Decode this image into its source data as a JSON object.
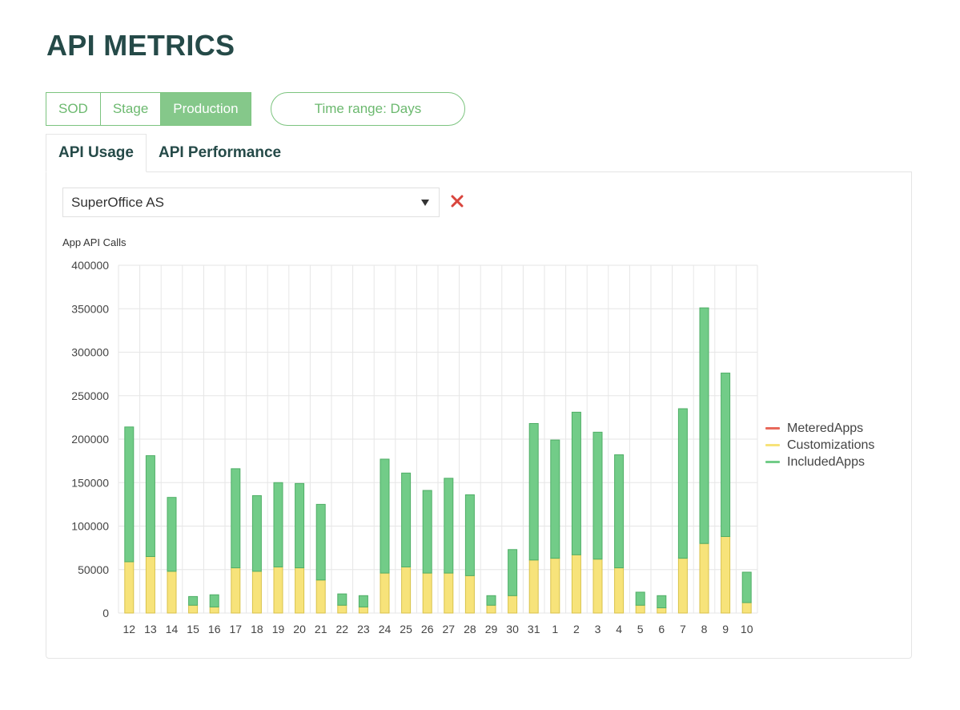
{
  "page": {
    "title": "API METRICS"
  },
  "environments": [
    {
      "label": "SOD",
      "active": false
    },
    {
      "label": "Stage",
      "active": false
    },
    {
      "label": "Production",
      "active": true
    }
  ],
  "time_range": {
    "label": "Time range: Days"
  },
  "tabs": [
    {
      "label": "API Usage",
      "active": true
    },
    {
      "label": "API Performance",
      "active": false
    }
  ],
  "filter": {
    "selected": "SuperOffice AS",
    "clear_icon": "close-icon",
    "caret_icon": "caret-down-icon"
  },
  "colors": {
    "metered": "#e8695b",
    "customizations": "#f7e37a",
    "customizations_stroke": "#d8c24a",
    "included": "#72cc88",
    "included_stroke": "#4fae66",
    "title": "#254a48",
    "accent": "#85c88a"
  },
  "chart_data": {
    "type": "bar",
    "stacked": true,
    "title": "App API Calls",
    "categories": [
      "12",
      "13",
      "14",
      "15",
      "16",
      "17",
      "18",
      "19",
      "20",
      "21",
      "22",
      "23",
      "24",
      "25",
      "26",
      "27",
      "28",
      "29",
      "30",
      "31",
      "1",
      "2",
      "3",
      "4",
      "5",
      "6",
      "7",
      "8",
      "9",
      "10"
    ],
    "series": [
      {
        "name": "MeteredApps",
        "values": [
          0,
          0,
          0,
          0,
          0,
          0,
          0,
          0,
          0,
          0,
          0,
          0,
          0,
          0,
          0,
          0,
          0,
          0,
          0,
          0,
          0,
          0,
          0,
          0,
          0,
          0,
          0,
          0,
          0,
          0
        ]
      },
      {
        "name": "Customizations",
        "values": [
          59000,
          65000,
          48000,
          9000,
          7000,
          52000,
          48000,
          53000,
          52000,
          38000,
          9000,
          7000,
          46000,
          53000,
          46000,
          46000,
          43000,
          9000,
          20000,
          61000,
          63000,
          67000,
          62000,
          52000,
          9000,
          6000,
          63000,
          80000,
          88000,
          12000
        ]
      },
      {
        "name": "IncludedApps",
        "values": [
          155000,
          116000,
          85000,
          10000,
          14000,
          114000,
          87000,
          97000,
          97000,
          87000,
          13000,
          13000,
          131000,
          108000,
          95000,
          109000,
          93000,
          11000,
          53000,
          157000,
          136000,
          164000,
          146000,
          130000,
          15000,
          14000,
          172000,
          271000,
          188000,
          35000
        ]
      }
    ],
    "ylim": [
      0,
      400000
    ],
    "yticks": [
      "0",
      "50000",
      "100000",
      "150000",
      "200000",
      "250000",
      "300000",
      "350000",
      "400000"
    ],
    "grid": true,
    "legend_position": "right"
  }
}
